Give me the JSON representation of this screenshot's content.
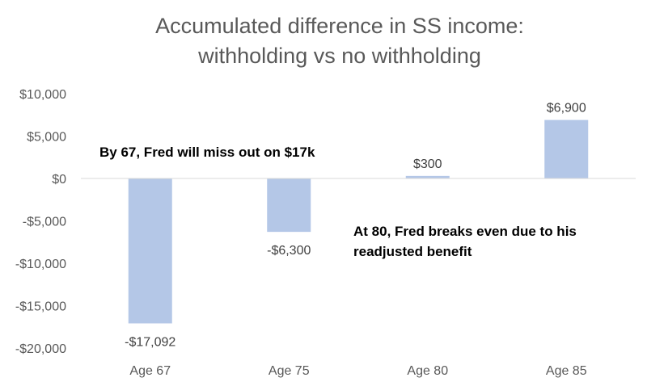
{
  "chart_data": {
    "type": "bar",
    "title_lines": [
      "Accumulated difference in SS income:",
      "withholding vs no withholding"
    ],
    "categories": [
      "Age 67",
      "Age 75",
      "Age 80",
      "Age 85"
    ],
    "values": [
      -17092,
      -6300,
      300,
      6900
    ],
    "data_labels": [
      "-$17,092",
      "-$6,300",
      "$300",
      "$6,900"
    ],
    "ylim": [
      -20000,
      10000
    ],
    "yticks": [
      10000,
      5000,
      0,
      -5000,
      -10000,
      -15000,
      -20000
    ],
    "ytick_labels": [
      "$10,000",
      "$5,000",
      "$0",
      "-$5,000",
      "-$10,000",
      "-$15,000",
      "-$20,000"
    ],
    "xlabel": "",
    "ylabel": "",
    "grid": false,
    "legend": "none",
    "bar_color": "#b4c7e7",
    "annotations": [
      {
        "text": "By 67, Fred will miss out on $17k"
      },
      {
        "lines": [
          "At 80, Fred breaks even due to his",
          "readjusted benefit"
        ]
      }
    ]
  }
}
